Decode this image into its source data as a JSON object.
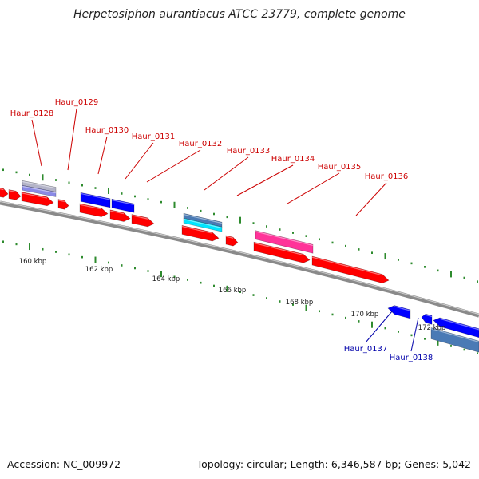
{
  "title": "Herpetosiphon aurantiacus ATCC 23779, complete genome",
  "footer": {
    "accession_label": "Accession: NC_009972",
    "summary_label": "Topology: circular; Length: 6,346,587 bp; Genes: 5,042"
  },
  "colors": {
    "backbone": "#8a8a8a",
    "tick": "#2e8b2e",
    "forward_label": "#cc0000",
    "reverse_label": "#0000aa",
    "cds_red": "#ff0000",
    "cds_blue": "#0000ff",
    "cds_steelblue": "#4a7ab5",
    "cds_cyan": "#00e5ff",
    "cds_magenta": "#ff3399",
    "cds_lavender": "#8a8ae6",
    "cds_gray": "#b4b4c8"
  },
  "scale_labels": [
    "160 kbp",
    "162 kbp",
    "164 kbp",
    "166 kbp",
    "168 kbp",
    "170 kbp",
    "172 kbp"
  ],
  "gene_labels": [
    {
      "text": "Haur_0128",
      "strand": "forward"
    },
    {
      "text": "Haur_0129",
      "strand": "forward"
    },
    {
      "text": "Haur_0130",
      "strand": "forward"
    },
    {
      "text": "Haur_0131",
      "strand": "forward"
    },
    {
      "text": "Haur_0132",
      "strand": "forward"
    },
    {
      "text": "Haur_0133",
      "strand": "forward"
    },
    {
      "text": "Haur_0134",
      "strand": "forward"
    },
    {
      "text": "Haur_0135",
      "strand": "forward"
    },
    {
      "text": "Haur_0136",
      "strand": "forward"
    },
    {
      "text": "Haur_0137",
      "strand": "reverse"
    },
    {
      "text": "Haur_0138",
      "strand": "reverse"
    }
  ]
}
